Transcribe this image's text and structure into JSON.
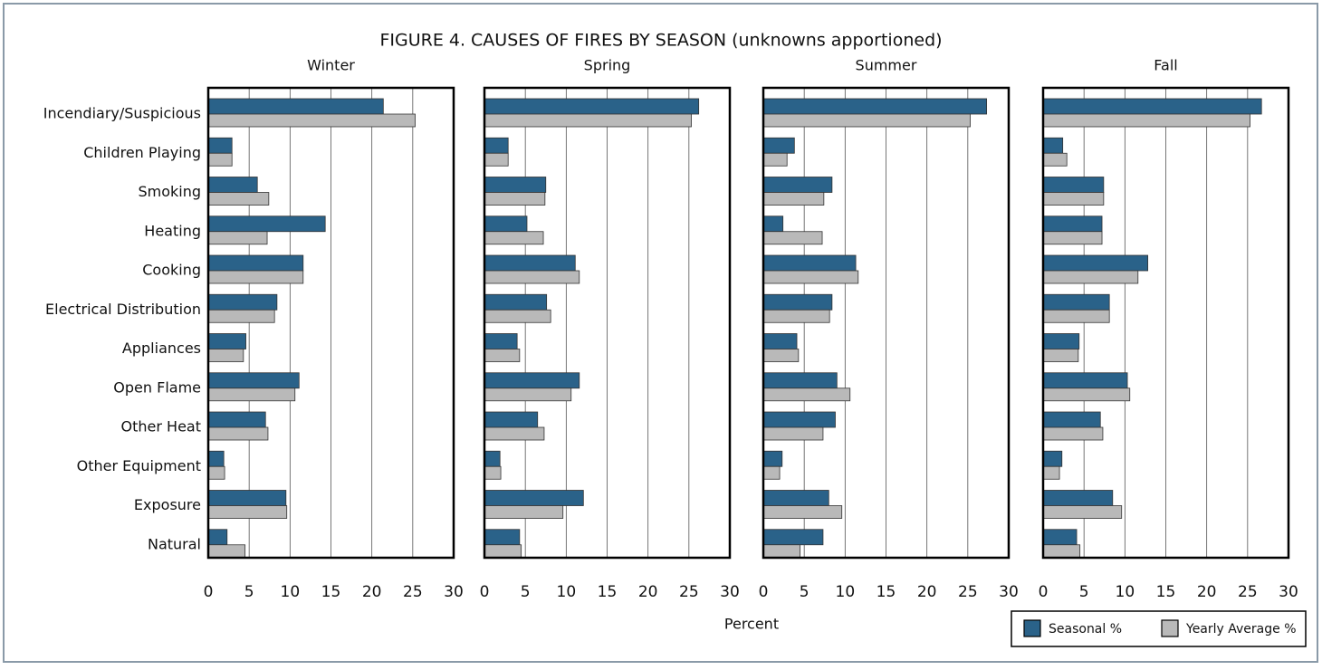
{
  "title": "FIGURE 4. CAUSES OF FIRES BY SEASON (unknowns apportioned)",
  "xlabel": "Percent",
  "categories": [
    "Incendiary/Suspicious",
    "Children Playing",
    "Smoking",
    "Heating",
    "Cooking",
    "Electrical Distribution",
    "Appliances",
    "Open Flame",
    "Other Heat",
    "Other Equipment",
    "Exposure",
    "Natural"
  ],
  "legend": "lower right",
  "chart_data": [
    {
      "type": "bar",
      "orientation": "horizontal",
      "title": "Winter",
      "xlim": [
        0,
        30
      ],
      "xticks": [
        0,
        5,
        10,
        15,
        20,
        25,
        30
      ],
      "grid": true,
      "series": [
        {
          "name": "Seasonal %",
          "color": "#2a6289",
          "values": [
            21.4,
            2.9,
            6.0,
            14.3,
            11.6,
            8.4,
            4.6,
            11.1,
            7.0,
            1.9,
            9.5,
            2.3
          ]
        },
        {
          "name": "Yearly Average %",
          "color": "#b9b9b9",
          "values": [
            25.3,
            2.9,
            7.4,
            7.2,
            11.6,
            8.1,
            4.3,
            10.6,
            7.3,
            2.0,
            9.6,
            4.5
          ]
        }
      ]
    },
    {
      "type": "bar",
      "orientation": "horizontal",
      "title": "Spring",
      "xlim": [
        0,
        30
      ],
      "xticks": [
        0,
        5,
        10,
        15,
        20,
        25,
        30
      ],
      "grid": true,
      "series": [
        {
          "name": "Seasonal %",
          "color": "#2a6289",
          "values": [
            26.2,
            2.9,
            7.5,
            5.2,
            11.1,
            7.6,
            4.0,
            11.6,
            6.5,
            1.9,
            12.1,
            4.3
          ]
        },
        {
          "name": "Yearly Average %",
          "color": "#b9b9b9",
          "values": [
            25.3,
            2.9,
            7.4,
            7.2,
            11.6,
            8.1,
            4.3,
            10.6,
            7.3,
            2.0,
            9.6,
            4.5
          ]
        }
      ]
    },
    {
      "type": "bar",
      "orientation": "horizontal",
      "title": "Summer",
      "xlim": [
        0,
        30
      ],
      "xticks": [
        0,
        5,
        10,
        15,
        20,
        25,
        30
      ],
      "grid": true,
      "series": [
        {
          "name": "Seasonal %",
          "color": "#2a6289",
          "values": [
            27.3,
            3.8,
            8.4,
            2.4,
            11.3,
            8.4,
            4.1,
            9.0,
            8.8,
            2.3,
            8.0,
            7.3
          ]
        },
        {
          "name": "Yearly Average %",
          "color": "#b9b9b9",
          "values": [
            25.3,
            2.9,
            7.4,
            7.2,
            11.6,
            8.1,
            4.3,
            10.6,
            7.3,
            2.0,
            9.6,
            4.5
          ]
        }
      ]
    },
    {
      "type": "bar",
      "orientation": "horizontal",
      "title": "Fall",
      "xlim": [
        0,
        30
      ],
      "xticks": [
        0,
        5,
        10,
        15,
        20,
        25,
        30
      ],
      "grid": true,
      "series": [
        {
          "name": "Seasonal %",
          "color": "#2a6289",
          "values": [
            26.7,
            2.4,
            7.4,
            7.2,
            12.8,
            8.1,
            4.4,
            10.3,
            7.0,
            2.3,
            8.5,
            4.1
          ]
        },
        {
          "name": "Yearly Average %",
          "color": "#b9b9b9",
          "values": [
            25.3,
            2.9,
            7.4,
            7.2,
            11.6,
            8.1,
            4.3,
            10.6,
            7.3,
            2.0,
            9.6,
            4.5
          ]
        }
      ]
    }
  ]
}
